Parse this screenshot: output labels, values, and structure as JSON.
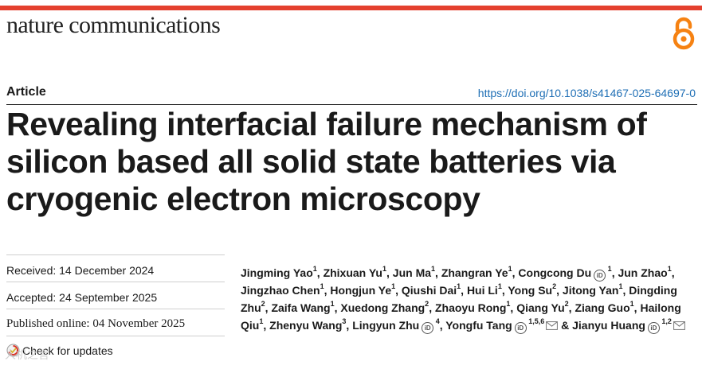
{
  "journal": {
    "name": "nature communications",
    "open_access_icon": "open-access-icon"
  },
  "header": {
    "article_type": "Article",
    "doi": "https://doi.org/10.1038/s41467-025-64697-0"
  },
  "title": {
    "line1": "Revealing interfacial failure mechanism of",
    "line2": "silicon based all solid state batteries via",
    "line3": "cryogenic electron microscopy"
  },
  "dates": {
    "received": "Received: 14 December 2024",
    "accepted": "Accepted: 24 September 2025",
    "published": "Published online: 04 November 2025",
    "check_updates": "Check for updates"
  },
  "authors": [
    {
      "name": "Jingming Yao",
      "aff": "1"
    },
    {
      "name": "Zhixuan Yu",
      "aff": "1"
    },
    {
      "name": "Jun Ma",
      "aff": "1"
    },
    {
      "name": "Zhangran Ye",
      "aff": "1"
    },
    {
      "name": "Congcong Du",
      "aff": "1",
      "orcid": true
    },
    {
      "name": "Jun Zhao",
      "aff": "1"
    },
    {
      "name": "Jingzhao Chen",
      "aff": "1"
    },
    {
      "name": "Hongjun Ye",
      "aff": "1"
    },
    {
      "name": "Qiushi Dai",
      "aff": "1"
    },
    {
      "name": "Hui Li",
      "aff": "1"
    },
    {
      "name": "Yong Su",
      "aff": "2"
    },
    {
      "name": "Jitong Yan",
      "aff": "1"
    },
    {
      "name": "Dingding Zhu",
      "aff": "2"
    },
    {
      "name": "Zaifa Wang",
      "aff": "1"
    },
    {
      "name": "Xuedong Zhang",
      "aff": "2"
    },
    {
      "name": "Zhaoyu Rong",
      "aff": "1"
    },
    {
      "name": "Qiang Yu",
      "aff": "2"
    },
    {
      "name": "Ziang Guo",
      "aff": "1"
    },
    {
      "name": "Hailong Qiu",
      "aff": "1"
    },
    {
      "name": "Zhenyu Wang",
      "aff": "3"
    },
    {
      "name": "Lingyun Zhu",
      "aff": "4",
      "orcid": true
    },
    {
      "name": "Yongfu Tang",
      "aff": "1,5,6",
      "orcid": true,
      "email": true
    },
    {
      "name": "Jianyu Huang",
      "aff": "1,2",
      "orcid": true,
      "email": true
    }
  ],
  "author_separator": ", ",
  "author_conjunction": " & ",
  "watermark": "人机之言"
}
